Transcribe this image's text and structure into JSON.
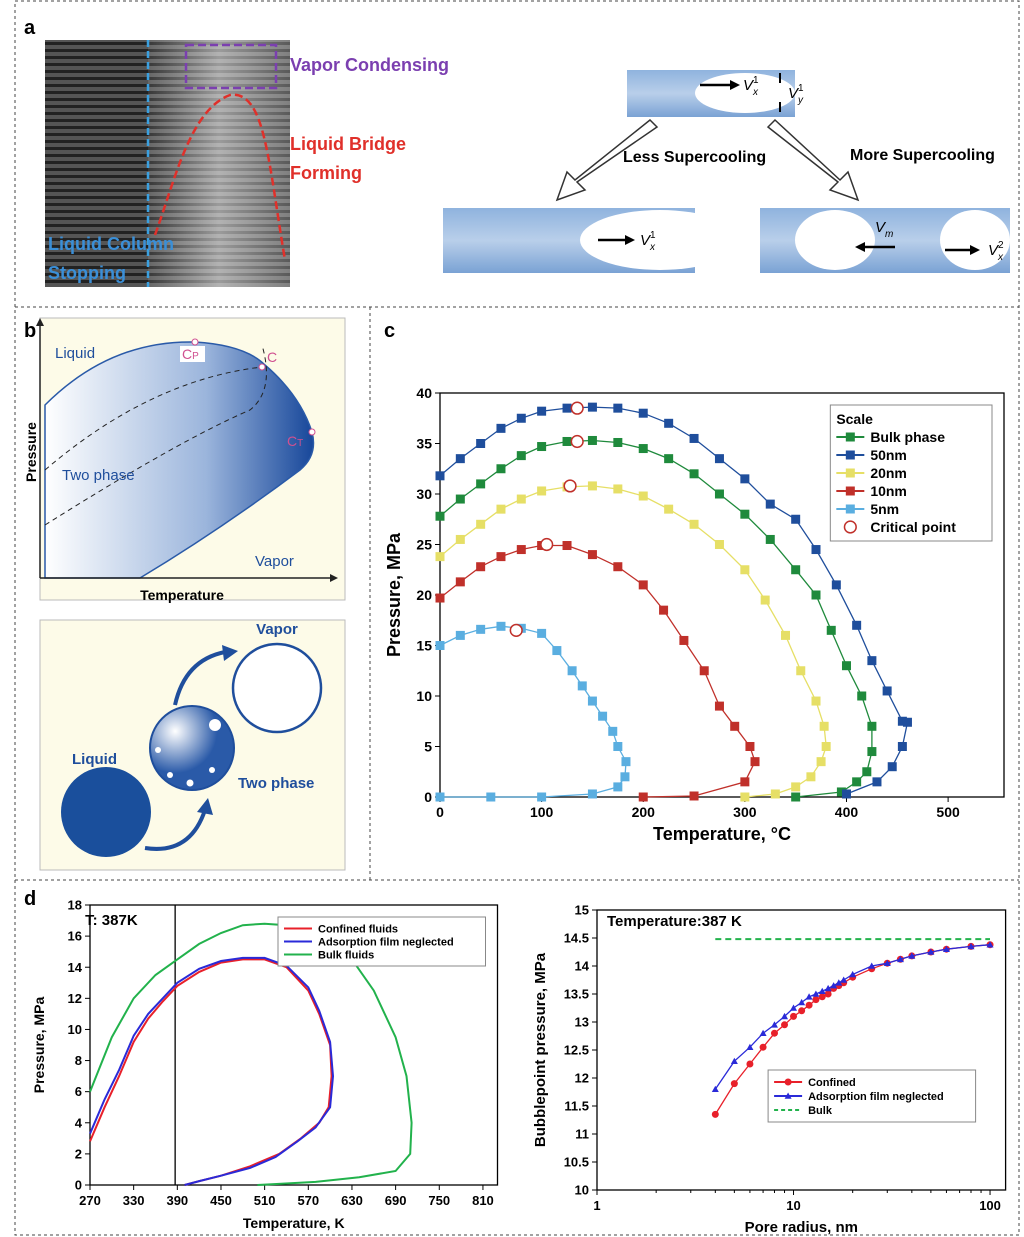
{
  "panel_a": {
    "label": "a",
    "vapor_condensing": "Vapor Condensing",
    "liquid_bridge": [
      "Liquid Bridge",
      "Forming"
    ],
    "liquid_column": [
      "Liquid Column",
      "Stopping"
    ],
    "less_supercooling": "Less Supercooling",
    "more_supercooling": "More Supercooling",
    "velocities": [
      {
        "base": "V",
        "sub": "x",
        "sup": "1"
      },
      {
        "base": "V",
        "sub": "y",
        "sup": "1"
      },
      {
        "base": "V",
        "sub": "x",
        "sup": "1"
      },
      {
        "base": "V",
        "sub": "m"
      },
      {
        "base": "V",
        "sub": "x",
        "sup": "2"
      }
    ]
  },
  "panel_b": {
    "label": "b",
    "phase_diagram": {
      "liquid": "Liquid",
      "cp": {
        "base": "C",
        "sub": "P"
      },
      "c": "C",
      "ct": {
        "base": "C",
        "sub": "T"
      },
      "two_phase": "Two phase",
      "vapor": "Vapor",
      "x_label": "Temperature",
      "y_label": "Pressure"
    },
    "transition": {
      "vapor": "Vapor",
      "liquid": "Liquid",
      "two_phase": "Two phase"
    }
  },
  "panel_c_label": "c",
  "panel_d_label": "d",
  "chart_data": [
    {
      "type": "line",
      "x_label": "Temperature, °C",
      "y_label": "Pressure, MPa",
      "xlim": [
        0,
        555
      ],
      "ylim": [
        0,
        40
      ],
      "xticks": [
        0,
        100,
        200,
        300,
        400,
        500
      ],
      "yticks": [
        0,
        5,
        10,
        15,
        20,
        25,
        30,
        35,
        40
      ],
      "grid": false,
      "legend": "upper right",
      "legend_title": "Scale",
      "series": [
        {
          "name": "Bulk phase",
          "color": "#1f8a3c",
          "marker": "square",
          "line": true,
          "x": [
            0,
            20,
            40,
            60,
            80,
            100,
            125,
            150,
            175,
            200,
            225,
            250,
            275,
            300,
            325,
            350,
            370,
            385,
            400,
            415,
            425,
            425,
            420,
            410,
            395,
            350
          ],
          "values": [
            27.8,
            29.5,
            31,
            32.5,
            33.8,
            34.7,
            35.2,
            35.3,
            35.1,
            34.5,
            33.5,
            32,
            30,
            28,
            25.5,
            22.5,
            20,
            16.5,
            13,
            10,
            7,
            4.5,
            2.5,
            1.5,
            0.5,
            0
          ]
        },
        {
          "name": "50nm",
          "color": "#1f4e9c",
          "marker": "square",
          "line": true,
          "x": [
            0,
            20,
            40,
            60,
            80,
            100,
            125,
            150,
            175,
            200,
            225,
            250,
            275,
            300,
            325,
            350,
            370,
            390,
            410,
            425,
            440,
            455,
            460,
            455,
            445,
            430,
            400
          ],
          "values": [
            31.8,
            33.5,
            35,
            36.5,
            37.5,
            38.2,
            38.5,
            38.6,
            38.5,
            38,
            37,
            35.5,
            33.5,
            31.5,
            29,
            27.5,
            24.5,
            21,
            17,
            13.5,
            10.5,
            7.5,
            7.4,
            5,
            3,
            1.5,
            0.3
          ]
        },
        {
          "name": "20nm",
          "color": "#e6df66",
          "marker": "square",
          "line": true,
          "x": [
            0,
            20,
            40,
            60,
            80,
            100,
            125,
            150,
            175,
            200,
            225,
            250,
            275,
            300,
            320,
            340,
            355,
            370,
            378,
            380,
            375,
            365,
            350,
            330,
            300
          ],
          "values": [
            23.8,
            25.5,
            27,
            28.5,
            29.5,
            30.3,
            30.7,
            30.8,
            30.5,
            29.8,
            28.5,
            27,
            25,
            22.5,
            19.5,
            16,
            12.5,
            9.5,
            7,
            5,
            3.5,
            2,
            1,
            0.3,
            0
          ]
        },
        {
          "name": "10nm",
          "color": "#c0302a",
          "marker": "square",
          "line": true,
          "x": [
            0,
            20,
            40,
            60,
            80,
            100,
            125,
            150,
            175,
            200,
            220,
            240,
            260,
            275,
            290,
            305,
            310,
            300,
            250,
            200
          ],
          "values": [
            19.7,
            21.3,
            22.8,
            23.8,
            24.5,
            24.9,
            24.9,
            24,
            22.8,
            21,
            18.5,
            15.5,
            12.5,
            9,
            7,
            5,
            3.5,
            1.5,
            0.1,
            0
          ]
        },
        {
          "name": "5nm",
          "color": "#5aaee0",
          "marker": "square",
          "line": true,
          "x": [
            0,
            20,
            40,
            60,
            80,
            100,
            115,
            130,
            140,
            150,
            160,
            170,
            175,
            183,
            182,
            175,
            150,
            100,
            50,
            0
          ],
          "values": [
            15,
            16,
            16.6,
            16.9,
            16.7,
            16.2,
            14.5,
            12.5,
            11,
            9.5,
            8,
            6.5,
            5,
            3.5,
            2,
            1,
            0.3,
            0,
            0,
            0
          ]
        },
        {
          "name": "Critical point",
          "color": "#c0302a",
          "marker": "open-circle",
          "line": false,
          "x": [
            135,
            135,
            128,
            105,
            75
          ],
          "values": [
            38.5,
            35.2,
            30.8,
            25,
            16.5
          ]
        }
      ]
    },
    {
      "type": "line",
      "x_label": "Temperature, K",
      "y_label": "Pressure, MPa",
      "xlim": [
        270,
        830
      ],
      "ylim": [
        0,
        18
      ],
      "xticks": [
        270,
        330,
        390,
        450,
        510,
        570,
        630,
        690,
        750,
        810
      ],
      "yticks": [
        0,
        2,
        4,
        6,
        8,
        10,
        12,
        14,
        16,
        18
      ],
      "grid": false,
      "legend": "upper right",
      "annotations": [
        {
          "text": "T: 387K",
          "x": 387
        }
      ],
      "series": [
        {
          "name": "Confined fluids",
          "color": "#e8202a",
          "marker": "none",
          "line": true,
          "x": [
            270,
            290,
            310,
            330,
            350,
            370,
            390,
            420,
            450,
            480,
            510,
            540,
            570,
            585,
            600,
            602,
            598,
            585,
            560,
            530,
            490,
            450,
            420,
            400
          ],
          "values": [
            2.8,
            5,
            7,
            9.2,
            10.7,
            11.8,
            12.8,
            13.7,
            14.3,
            14.5,
            14.5,
            14,
            12.5,
            11,
            9,
            7,
            5,
            4,
            3,
            2,
            1.2,
            0.6,
            0.25,
            0
          ]
        },
        {
          "name": "Adsorption film neglected",
          "color": "#2a2ad8",
          "marker": "none",
          "line": true,
          "x": [
            270,
            290,
            310,
            330,
            350,
            370,
            390,
            420,
            450,
            480,
            510,
            540,
            570,
            585,
            600,
            604,
            600,
            580,
            555,
            525,
            490,
            450,
            420,
            400
          ],
          "values": [
            3.3,
            5.5,
            7.4,
            9.6,
            11,
            12,
            13,
            13.9,
            14.4,
            14.6,
            14.6,
            14.1,
            12.7,
            11.2,
            9.2,
            7,
            5,
            3.7,
            2.8,
            1.8,
            1.1,
            0.6,
            0.25,
            0
          ]
        },
        {
          "name": "Bulk fluids",
          "color": "#22b24c",
          "marker": "none",
          "line": true,
          "x": [
            270,
            300,
            330,
            360,
            390,
            420,
            450,
            480,
            510,
            540,
            570,
            600,
            630,
            660,
            690,
            705,
            712,
            710,
            690,
            640,
            580,
            520,
            500
          ],
          "values": [
            6,
            9.5,
            12,
            13.5,
            14.5,
            15.5,
            16.2,
            16.7,
            16.8,
            16.7,
            16.3,
            15.6,
            14.5,
            12.5,
            9.5,
            7,
            4,
            2,
            0.9,
            0.5,
            0.2,
            0.05,
            0
          ]
        }
      ]
    },
    {
      "type": "line",
      "x_label": "Pore radius, nm",
      "y_label": "Bubblepoint pressure, MPa",
      "xscale": "log",
      "xlim": [
        1,
        120
      ],
      "ylim": [
        10,
        15
      ],
      "xticks": [
        1,
        10,
        100
      ],
      "yticks": [
        10,
        10.5,
        11,
        11.5,
        12,
        12.5,
        13,
        13.5,
        14,
        14.5,
        15
      ],
      "grid": false,
      "legend": "lower right",
      "annotations": [
        {
          "text": "Temperature:387 K"
        }
      ],
      "series": [
        {
          "name": "Confined",
          "color": "#e8202a",
          "marker": "circle",
          "line": true,
          "x": [
            4,
            5,
            6,
            7,
            8,
            9,
            10,
            11,
            12,
            13,
            14,
            15,
            16,
            17,
            18,
            20,
            25,
            30,
            35,
            40,
            50,
            60,
            80,
            100
          ],
          "values": [
            11.35,
            11.9,
            12.25,
            12.55,
            12.8,
            12.95,
            13.1,
            13.2,
            13.3,
            13.4,
            13.45,
            13.5,
            13.6,
            13.65,
            13.7,
            13.8,
            13.95,
            14.05,
            14.12,
            14.18,
            14.25,
            14.3,
            14.35,
            14.38
          ]
        },
        {
          "name": "Adsorption film neglected",
          "color": "#2a2ad8",
          "marker": "triangle",
          "line": true,
          "x": [
            4,
            5,
            6,
            7,
            8,
            9,
            10,
            11,
            12,
            13,
            14,
            15,
            16,
            17,
            18,
            20,
            25,
            30,
            35,
            40,
            50,
            60,
            80,
            100
          ],
          "values": [
            11.8,
            12.3,
            12.55,
            12.8,
            12.95,
            13.1,
            13.25,
            13.35,
            13.45,
            13.5,
            13.55,
            13.6,
            13.65,
            13.7,
            13.75,
            13.85,
            14,
            14.05,
            14.12,
            14.18,
            14.25,
            14.3,
            14.35,
            14.38
          ]
        },
        {
          "name": "Bulk",
          "color": "#22b24c",
          "marker": "none",
          "line": true,
          "dash": true,
          "x": [
            4,
            100
          ],
          "values": [
            14.48,
            14.48
          ]
        }
      ]
    }
  ]
}
